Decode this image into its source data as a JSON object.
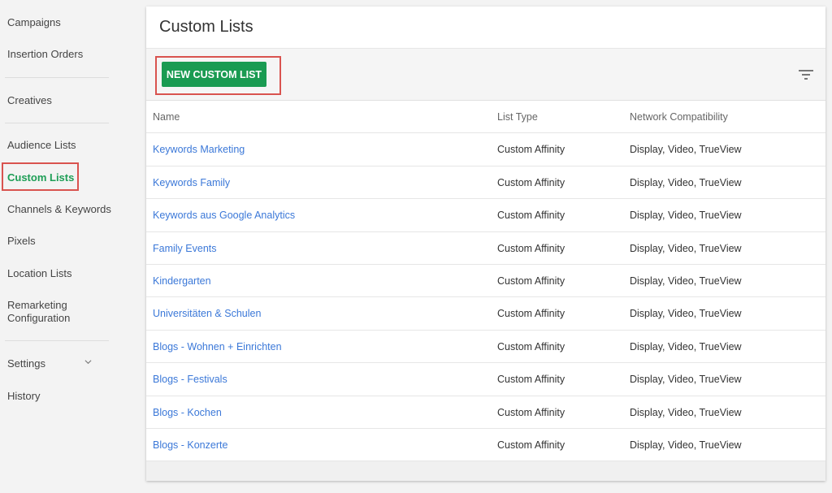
{
  "sidebar": {
    "items": [
      {
        "label": "Campaigns"
      },
      {
        "label": "Insertion Orders"
      },
      {
        "label": "Creatives"
      },
      {
        "label": "Audience Lists"
      },
      {
        "label": "Custom Lists"
      },
      {
        "label": "Channels & Keywords"
      },
      {
        "label": "Pixels"
      },
      {
        "label": "Location Lists"
      },
      {
        "label": "Remarketing Configuration"
      },
      {
        "label": "Settings"
      },
      {
        "label": "History"
      }
    ],
    "active": "Custom Lists"
  },
  "page": {
    "title": "Custom Lists",
    "new_button": "NEW CUSTOM LIST"
  },
  "table": {
    "columns": [
      "Name",
      "List Type",
      "Network Compatibility"
    ],
    "rows": [
      [
        "Keywords Marketing",
        "Custom Affinity",
        "Display, Video, TrueView"
      ],
      [
        "Keywords Family",
        "Custom Affinity",
        "Display, Video, TrueView"
      ],
      [
        "Keywords aus Google Analytics",
        "Custom Affinity",
        "Display, Video, TrueView"
      ],
      [
        "Family Events",
        "Custom Affinity",
        "Display, Video, TrueView"
      ],
      [
        "Kindergarten",
        "Custom Affinity",
        "Display, Video, TrueView"
      ],
      [
        "Universitäten & Schulen",
        "Custom Affinity",
        "Display, Video, TrueView"
      ],
      [
        "Blogs - Wohnen + Einrichten",
        "Custom Affinity",
        "Display, Video, TrueView"
      ],
      [
        "Blogs - Festivals",
        "Custom Affinity",
        "Display, Video, TrueView"
      ],
      [
        "Blogs - Kochen",
        "Custom Affinity",
        "Display, Video, TrueView"
      ],
      [
        "Blogs - Konzerte",
        "Custom Affinity",
        "Display, Video, TrueView"
      ]
    ]
  },
  "colors": {
    "accent": "#1a9b52",
    "link": "#3b78d8",
    "highlight": "#d9534f"
  }
}
